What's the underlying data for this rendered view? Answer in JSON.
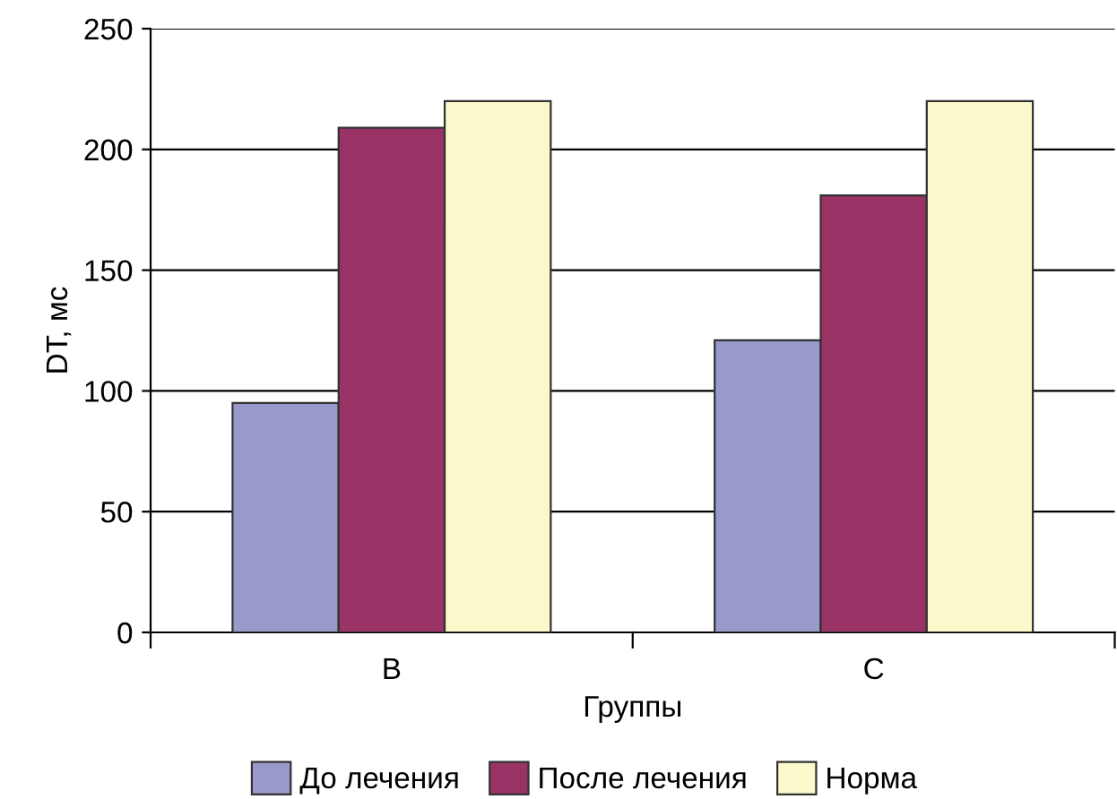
{
  "chart_data": {
    "type": "bar",
    "xlabel": "Группы",
    "ylabel": "DT, мс",
    "categories": [
      "B",
      "C"
    ],
    "series": [
      {
        "name": "До лечения",
        "color": "#9999cc",
        "values": [
          95,
          121
        ]
      },
      {
        "name": "После лечения",
        "color": "#993366",
        "values": [
          209,
          181
        ]
      },
      {
        "name": "Норма",
        "color": "#fbf8cb",
        "values": [
          220,
          220
        ]
      }
    ],
    "ylim": [
      0,
      250
    ],
    "yticks": [
      0,
      50,
      100,
      150,
      200,
      250
    ],
    "grid": "y",
    "legend": "bottom"
  }
}
